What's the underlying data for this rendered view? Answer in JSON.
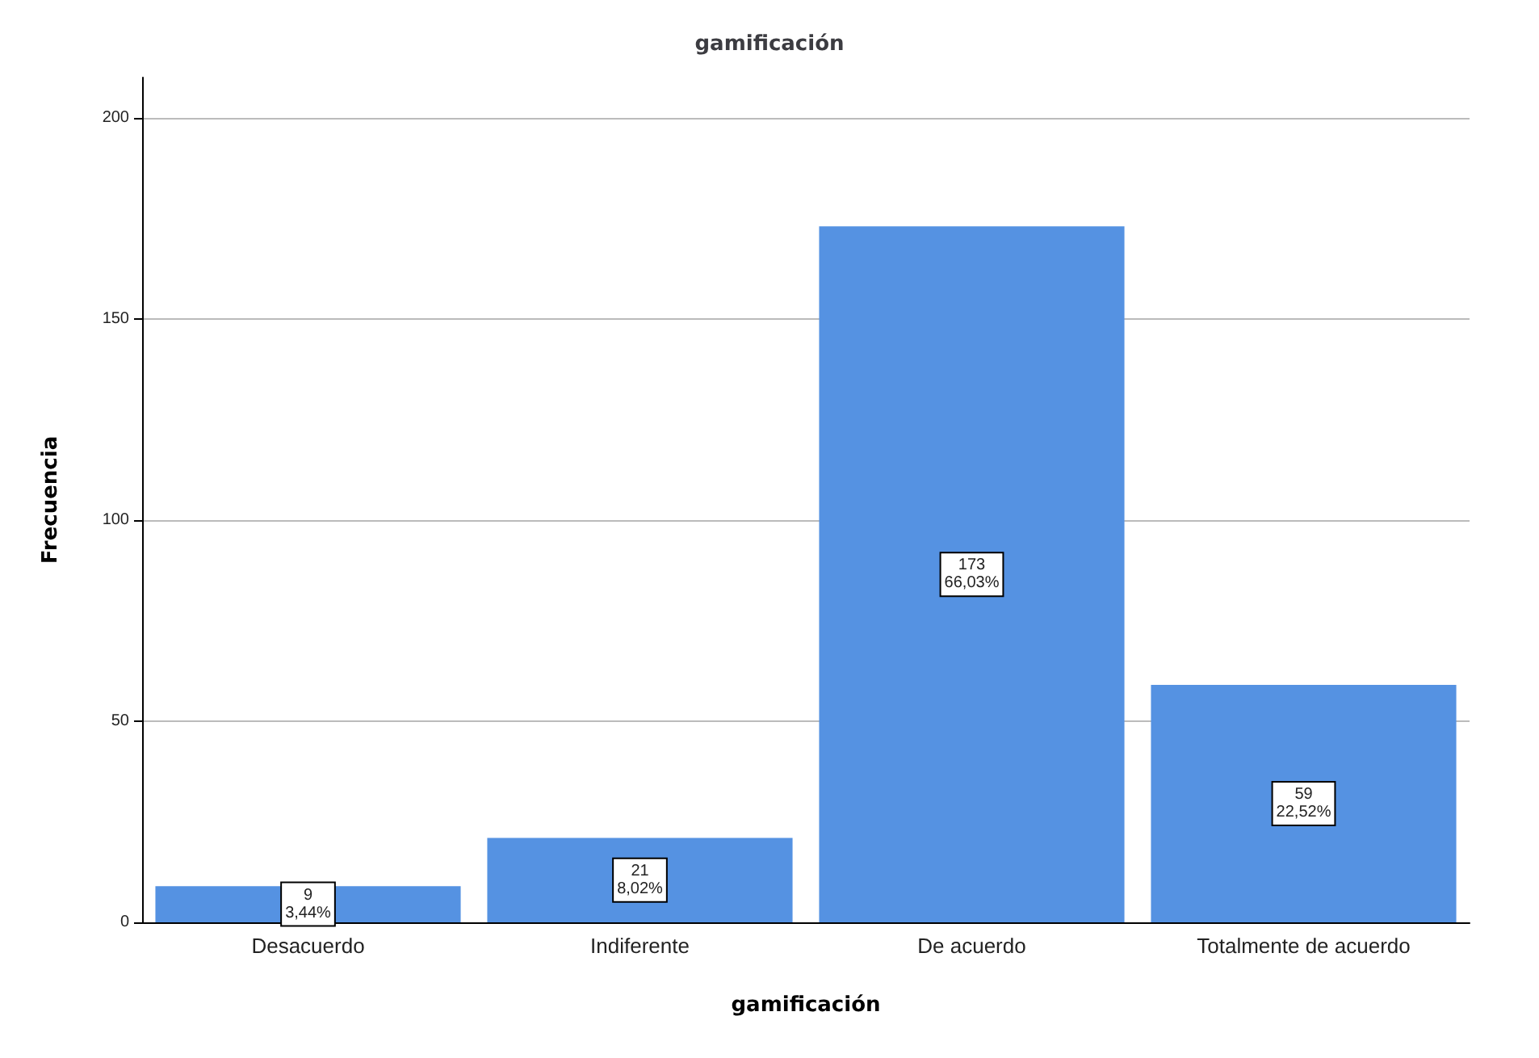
{
  "chart_data": {
    "type": "bar",
    "title": "gamificación",
    "xlabel": "gamificación",
    "ylabel": "Frecuencia",
    "categories": [
      "Desacuerdo",
      "Indiferente",
      "De acuerdo",
      "Totalmente de acuerdo"
    ],
    "values": [
      9,
      21,
      173,
      59
    ],
    "value_labels": [
      "9\n3,44%",
      "21\n8,02%",
      "173\n66,03%",
      "59\n22,52%"
    ],
    "color": "#5592e2",
    "ylim": [
      0,
      210
    ],
    "yticks": [
      0,
      50,
      100,
      150,
      200
    ],
    "grid": "y"
  }
}
